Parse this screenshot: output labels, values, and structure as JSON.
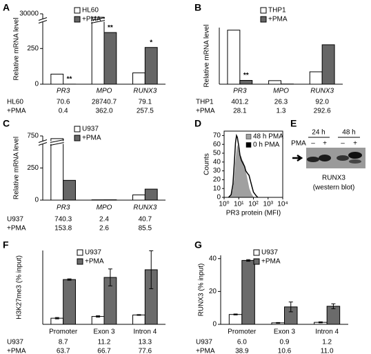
{
  "chart_data": [
    {
      "type": "bar",
      "panel": "A",
      "ylabel": "Relative mRNA level",
      "italic_categories": true,
      "categories": [
        "PR3",
        "MPO",
        "RUNX3"
      ],
      "series": [
        {
          "name": "HL60",
          "color": "#ffffff",
          "values": [
            70.6,
            28740.7,
            79.1
          ],
          "value_labels": [
            "70.6",
            "28740.7",
            "79.1"
          ]
        },
        {
          "name": "+PMA",
          "color": "#666666",
          "values": [
            0.4,
            362.0,
            257.5
          ],
          "value_labels": [
            "0.4",
            "362.0",
            "257.5"
          ],
          "annotations": [
            "**",
            "**",
            "*"
          ]
        }
      ],
      "ylim": [
        0,
        30000
      ],
      "yticks": [
        0,
        250,
        30000
      ],
      "axis_break": [
        440,
        28000
      ]
    },
    {
      "type": "bar",
      "panel": "B",
      "ylabel": "Relative mRNA level",
      "italic_categories": true,
      "categories": [
        "PR3",
        "MPO",
        "RUNX3"
      ],
      "series": [
        {
          "name": "THP1",
          "color": "#ffffff",
          "values": [
            401.2,
            26.3,
            92.0
          ],
          "value_labels": [
            "401.2",
            "26.3",
            "92.0"
          ]
        },
        {
          "name": "+PMA",
          "color": "#666666",
          "values": [
            28.1,
            1.3,
            292.6
          ],
          "value_labels": [
            "28.1",
            "1.3",
            "292.6"
          ],
          "annotations": [
            "**",
            null,
            null
          ]
        }
      ],
      "ylim": [
        0,
        420
      ]
    },
    {
      "type": "bar",
      "panel": "C",
      "ylabel": "Relative mRNA level",
      "italic_categories": true,
      "categories": [
        "PR3",
        "MPO",
        "RUNX3"
      ],
      "series": [
        {
          "name": "U937",
          "color": "#ffffff",
          "values": [
            740.3,
            2.4,
            40.7
          ],
          "value_labels": [
            "740.3",
            "2.4",
            "40.7"
          ]
        },
        {
          "name": "+PMA",
          "color": "#666666",
          "values": [
            153.8,
            2.6,
            85.5
          ],
          "value_labels": [
            "153.8",
            "2.6",
            "85.5"
          ]
        }
      ],
      "ylim": [
        0,
        750
      ],
      "yticks": [
        0,
        250,
        750
      ],
      "axis_break": [
        440,
        730
      ]
    },
    {
      "type": "histogram_overlay",
      "panel": "D",
      "ylabel": "Counts",
      "xlabel": "PR3 protein (MFI)",
      "log_x": true,
      "series": [
        {
          "name": "48 h PMA",
          "color": "#a0a0a0",
          "x": [
            2,
            3,
            4,
            5,
            6,
            7,
            8,
            9,
            10,
            12,
            14,
            17,
            20,
            25,
            30,
            40,
            50,
            70,
            100
          ],
          "values": [
            0,
            2,
            8,
            20,
            38,
            50,
            58,
            56,
            50,
            44,
            46,
            42,
            40,
            35,
            28,
            18,
            10,
            4,
            0
          ]
        },
        {
          "name": "0 h PMA",
          "color": "#000000",
          "x": [
            2,
            3,
            4,
            5,
            6,
            7,
            8,
            10,
            12,
            15,
            20,
            25,
            30,
            40,
            50,
            60,
            80,
            100,
            150,
            200
          ],
          "values": [
            0,
            3,
            15,
            40,
            62,
            70,
            68,
            58,
            48,
            42,
            38,
            35,
            30,
            27,
            25,
            20,
            12,
            6,
            2,
            0
          ]
        }
      ],
      "xlim": [
        1,
        10000
      ],
      "xticks": [
        {
          "value": 1,
          "label": "10⁰"
        },
        {
          "value": 10,
          "label": "10¹"
        },
        {
          "value": 100,
          "label": "10²"
        },
        {
          "value": 1000,
          "label": "10³"
        },
        {
          "value": 10000,
          "label": "10⁴"
        }
      ],
      "ylim": [
        0,
        75
      ],
      "yticks": [
        0,
        10,
        20,
        30,
        40,
        50,
        60,
        70
      ]
    },
    {
      "type": "bar",
      "panel": "F",
      "ylabel": "H3K27me3 (% input)",
      "italic_categories": false,
      "categories": [
        "Promoter",
        "Exon 3",
        "Intron 4"
      ],
      "series": [
        {
          "name": "U937",
          "color": "#ffffff",
          "values": [
            8.7,
            11.2,
            13.3
          ],
          "value_labels": [
            "8.7",
            "11.2",
            "13.3"
          ],
          "errors": [
            1,
            1,
            0.5
          ]
        },
        {
          "name": "+PMA",
          "color": "#6b6b6b",
          "values": [
            63.7,
            66.7,
            77.6
          ],
          "value_labels": [
            "63.7",
            "66.7",
            "77.6"
          ],
          "errors": [
            1,
            12,
            27
          ]
        }
      ],
      "ylim": [
        0,
        105
      ]
    },
    {
      "type": "bar",
      "panel": "G",
      "ylabel": "RUNX3 (% input)",
      "italic_categories": false,
      "categories": [
        "Promoter",
        "Exon 3",
        "Intron 4"
      ],
      "series": [
        {
          "name": "U937",
          "color": "#ffffff",
          "values": [
            6.0,
            0.9,
            1.2
          ],
          "value_labels": [
            "6.0",
            "0.9",
            "1.2"
          ],
          "errors": [
            0.3,
            0.2,
            0.3
          ]
        },
        {
          "name": "+PMA",
          "color": "#6b6b6b",
          "values": [
            38.9,
            10.6,
            11.0
          ],
          "value_labels": [
            "38.9",
            "10.6",
            "11.0"
          ],
          "errors": [
            0.5,
            3,
            1.5
          ]
        }
      ],
      "ylim": [
        0,
        42
      ],
      "yticks": [
        0,
        20,
        40
      ]
    }
  ],
  "blot": {
    "panel": "E",
    "time_labels": [
      "24 h",
      "48 h"
    ],
    "treatment": "PMA",
    "lanes": [
      "–",
      "+",
      "–",
      "+"
    ],
    "caption": "RUNX3",
    "subcaption": "(western blot)"
  }
}
